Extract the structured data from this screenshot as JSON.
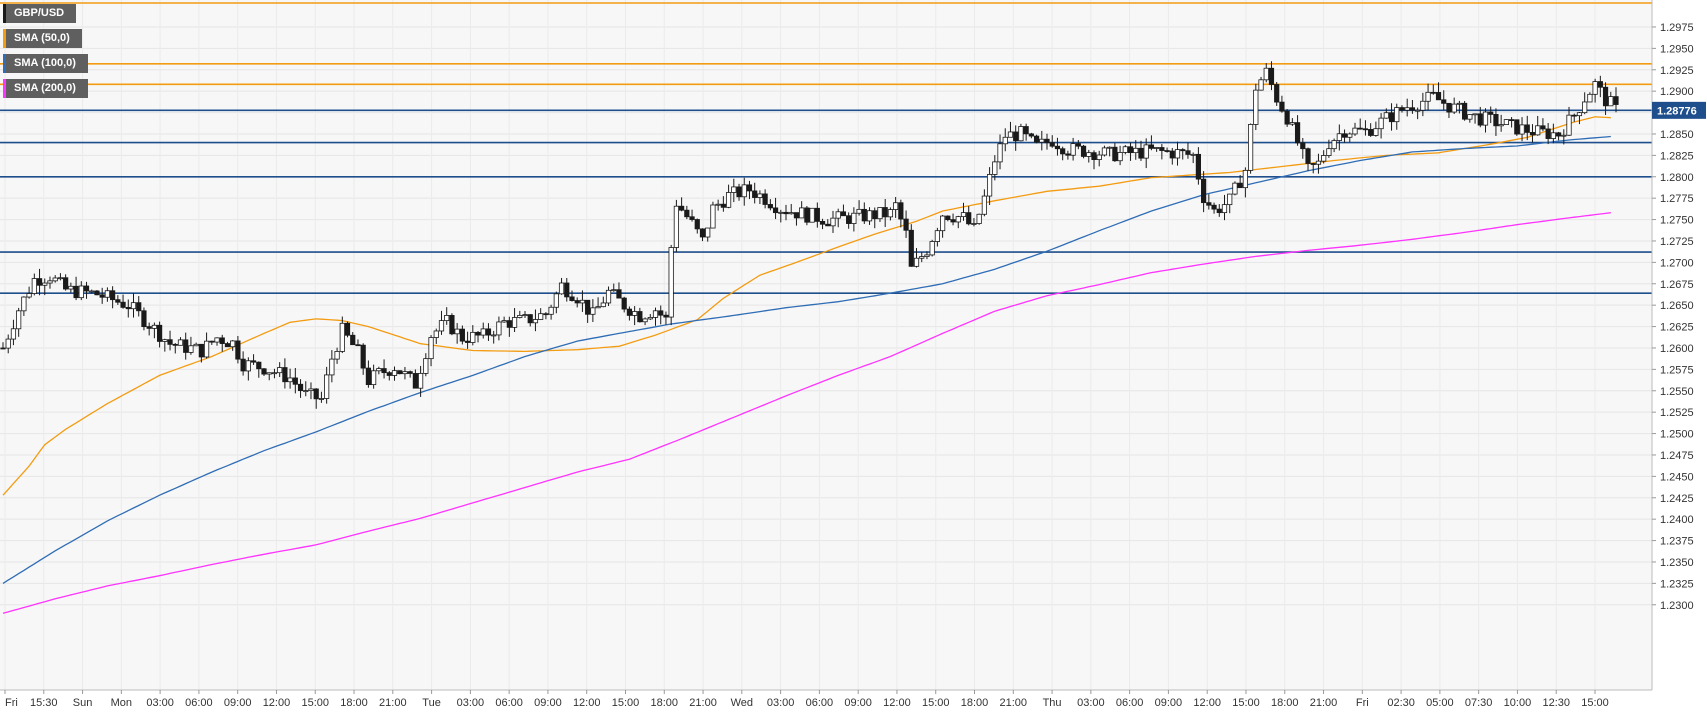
{
  "legend": {
    "items": [
      {
        "label": "GBP/USD",
        "color": "#1a1a1a"
      },
      {
        "label": "SMA (50,0)",
        "color": "#f39c12"
      },
      {
        "label": "SMA (100,0)",
        "color": "#2f6db5"
      },
      {
        "label": "SMA (200,0)",
        "color": "#ff33ff"
      }
    ]
  },
  "chart_data": {
    "type": "candlestick",
    "symbol": "GBP/USD",
    "last_price_label": "1.28776",
    "last_price": 1.28776,
    "ylim": [
      1.228,
      1.3005
    ],
    "y_ticks": [
      "1.2975",
      "1.2950",
      "1.2925",
      "1.2900",
      "1.2875",
      "1.2850",
      "1.2825",
      "1.2800",
      "1.2775",
      "1.2750",
      "1.2725",
      "1.2700",
      "1.2675",
      "1.2650",
      "1.2625",
      "1.2600",
      "1.2575",
      "1.2550",
      "1.2525",
      "1.2500",
      "1.2475",
      "1.2450",
      "1.2425",
      "1.2400",
      "1.2375",
      "1.2350",
      "1.2325",
      "1.2300"
    ],
    "x_ticks": [
      "Fri",
      "15:30",
      "Sun",
      "Mon",
      "03:00",
      "06:00",
      "09:00",
      "12:00",
      "15:00",
      "18:00",
      "21:00",
      "Tue",
      "03:00",
      "06:00",
      "09:00",
      "12:00",
      "15:00",
      "18:00",
      "21:00",
      "Wed",
      "03:00",
      "06:00",
      "09:00",
      "12:00",
      "15:00",
      "18:00",
      "21:00",
      "Thu",
      "03:00",
      "06:00",
      "09:00",
      "12:00",
      "15:00",
      "18:00",
      "21:00",
      "Fri",
      "02:30",
      "05:00",
      "07:30",
      "10:00",
      "12:30",
      "15:00"
    ],
    "horizontal_levels": [
      {
        "value": 1.3003,
        "color": "#f39c12"
      },
      {
        "value": 1.2932,
        "color": "#f39c12"
      },
      {
        "value": 1.2908,
        "color": "#f39c12"
      },
      {
        "value": 1.28776,
        "color": "#1f4e8c"
      },
      {
        "value": 1.284,
        "color": "#1f4e8c"
      },
      {
        "value": 1.28,
        "color": "#1f4e8c"
      },
      {
        "value": 1.2712,
        "color": "#1f4e8c"
      },
      {
        "value": 1.2664,
        "color": "#1f4e8c"
      }
    ],
    "sma": [
      {
        "name": "SMA (50,0)",
        "color": "#f39c12",
        "points": [
          [
            0,
            1.2428
          ],
          [
            5,
            1.2462
          ],
          [
            8,
            1.2487
          ],
          [
            12,
            1.2505
          ],
          [
            20,
            1.2535
          ],
          [
            30,
            1.2568
          ],
          [
            40,
            1.259
          ],
          [
            50,
            1.2617
          ],
          [
            55,
            1.263
          ],
          [
            60,
            1.2634
          ],
          [
            65,
            1.2632
          ],
          [
            70,
            1.2625
          ],
          [
            80,
            1.2605
          ],
          [
            90,
            1.2597
          ],
          [
            100,
            1.2596
          ],
          [
            110,
            1.2598
          ],
          [
            118,
            1.2602
          ],
          [
            125,
            1.2615
          ],
          [
            133,
            1.2633
          ],
          [
            138,
            1.2658
          ],
          [
            145,
            1.2685
          ],
          [
            152,
            1.27
          ],
          [
            160,
            1.2718
          ],
          [
            167,
            1.2733
          ],
          [
            175,
            1.2748
          ],
          [
            180,
            1.276
          ],
          [
            190,
            1.2772
          ],
          [
            200,
            1.2783
          ],
          [
            210,
            1.2789
          ],
          [
            220,
            1.2799
          ],
          [
            235,
            1.2805
          ],
          [
            245,
            1.2812
          ],
          [
            255,
            1.2819
          ],
          [
            265,
            1.2825
          ],
          [
            275,
            1.2828
          ],
          [
            285,
            1.2838
          ],
          [
            292,
            1.2846
          ],
          [
            298,
            1.2858
          ],
          [
            301,
            1.2864
          ],
          [
            305,
            1.287
          ],
          [
            308,
            1.2869
          ]
        ]
      },
      {
        "name": "SMA (100,0)",
        "color": "#2f6db5",
        "points": [
          [
            0,
            1.2325
          ],
          [
            10,
            1.2363
          ],
          [
            20,
            1.2398
          ],
          [
            30,
            1.2428
          ],
          [
            40,
            1.2455
          ],
          [
            50,
            1.248
          ],
          [
            60,
            1.2502
          ],
          [
            70,
            1.2526
          ],
          [
            80,
            1.2548
          ],
          [
            90,
            1.2568
          ],
          [
            100,
            1.259
          ],
          [
            110,
            1.2608
          ],
          [
            118,
            1.2617
          ],
          [
            128,
            1.2628
          ],
          [
            140,
            1.2638
          ],
          [
            150,
            1.2647
          ],
          [
            160,
            1.2654
          ],
          [
            170,
            1.2664
          ],
          [
            180,
            1.2675
          ],
          [
            190,
            1.2692
          ],
          [
            200,
            1.2713
          ],
          [
            210,
            1.2737
          ],
          [
            220,
            1.276
          ],
          [
            230,
            1.2779
          ],
          [
            240,
            1.2793
          ],
          [
            250,
            1.2807
          ],
          [
            260,
            1.2819
          ],
          [
            270,
            1.2829
          ],
          [
            280,
            1.2833
          ],
          [
            290,
            1.2836
          ],
          [
            300,
            1.2843
          ],
          [
            308,
            1.2847
          ]
        ]
      },
      {
        "name": "SMA (200,0)",
        "color": "#ff33ff",
        "points": [
          [
            0,
            1.229
          ],
          [
            10,
            1.2307
          ],
          [
            20,
            1.2322
          ],
          [
            30,
            1.2334
          ],
          [
            40,
            1.2347
          ],
          [
            50,
            1.2359
          ],
          [
            60,
            1.237
          ],
          [
            70,
            1.2386
          ],
          [
            80,
            1.2401
          ],
          [
            90,
            1.2419
          ],
          [
            100,
            1.2437
          ],
          [
            110,
            1.2455
          ],
          [
            120,
            1.247
          ],
          [
            130,
            1.2494
          ],
          [
            140,
            1.2519
          ],
          [
            150,
            1.2544
          ],
          [
            160,
            1.2568
          ],
          [
            170,
            1.259
          ],
          [
            180,
            1.2617
          ],
          [
            190,
            1.2643
          ],
          [
            200,
            1.2661
          ],
          [
            210,
            1.2674
          ],
          [
            220,
            1.2688
          ],
          [
            230,
            1.2698
          ],
          [
            240,
            1.2707
          ],
          [
            250,
            1.2714
          ],
          [
            260,
            1.272
          ],
          [
            270,
            1.2727
          ],
          [
            280,
            1.2735
          ],
          [
            290,
            1.2744
          ],
          [
            300,
            1.2752
          ],
          [
            308,
            1.2758
          ]
        ]
      }
    ],
    "candle_count": 310,
    "price_path": [
      [
        0,
        1.26
      ],
      [
        3,
        1.2645
      ],
      [
        6,
        1.268
      ],
      [
        9,
        1.2684
      ],
      [
        12,
        1.2668
      ],
      [
        18,
        1.2663
      ],
      [
        24,
        1.265
      ],
      [
        28,
        1.2628
      ],
      [
        32,
        1.2605
      ],
      [
        38,
        1.2597
      ],
      [
        41,
        1.2612
      ],
      [
        44,
        1.2606
      ],
      [
        46,
        1.2582
      ],
      [
        50,
        1.2577
      ],
      [
        55,
        1.2565
      ],
      [
        58,
        1.2545
      ],
      [
        61,
        1.254
      ],
      [
        63,
        1.2588
      ],
      [
        65,
        1.262
      ],
      [
        68,
        1.2595
      ],
      [
        70,
        1.2562
      ],
      [
        72,
        1.257
      ],
      [
        75,
        1.2578
      ],
      [
        79,
        1.2558
      ],
      [
        82,
        1.2615
      ],
      [
        85,
        1.263
      ],
      [
        88,
        1.2612
      ],
      [
        92,
        1.2614
      ],
      [
        96,
        1.263
      ],
      [
        100,
        1.2632
      ],
      [
        104,
        1.264
      ],
      [
        107,
        1.2673
      ],
      [
        110,
        1.266
      ],
      [
        113,
        1.2638
      ],
      [
        116,
        1.2665
      ],
      [
        119,
        1.265
      ],
      [
        122,
        1.2638
      ],
      [
        125,
        1.2645
      ],
      [
        127,
        1.2633
      ],
      [
        128,
        1.2718
      ],
      [
        129,
        1.277
      ],
      [
        132,
        1.2745
      ],
      [
        134,
        1.2725
      ],
      [
        136,
        1.2763
      ],
      [
        139,
        1.2778
      ],
      [
        143,
        1.2785
      ],
      [
        146,
        1.2775
      ],
      [
        149,
        1.2763
      ],
      [
        153,
        1.2757
      ],
      [
        158,
        1.275
      ],
      [
        162,
        1.2752
      ],
      [
        166,
        1.2755
      ],
      [
        170,
        1.2757
      ],
      [
        171,
        1.2766
      ],
      [
        173,
        1.2733
      ],
      [
        174,
        1.2692
      ],
      [
        177,
        1.2715
      ],
      [
        180,
        1.2757
      ],
      [
        184,
        1.2752
      ],
      [
        186,
        1.2738
      ],
      [
        188,
        1.2775
      ],
      [
        190,
        1.282
      ],
      [
        192,
        1.2848
      ],
      [
        195,
        1.285
      ],
      [
        198,
        1.2835
      ],
      [
        201,
        1.2843
      ],
      [
        204,
        1.2832
      ],
      [
        208,
        1.283
      ],
      [
        212,
        1.2826
      ],
      [
        216,
        1.2828
      ],
      [
        220,
        1.283
      ],
      [
        225,
        1.2828
      ],
      [
        228,
        1.2825
      ],
      [
        230,
        1.2777
      ],
      [
        232,
        1.276
      ],
      [
        235,
        1.2772
      ],
      [
        238,
        1.2808
      ],
      [
        240,
        1.2905
      ],
      [
        242,
        1.2922
      ],
      [
        244,
        1.2892
      ],
      [
        246,
        1.287
      ],
      [
        248,
        1.284
      ],
      [
        250,
        1.2808
      ],
      [
        252,
        1.2815
      ],
      [
        254,
        1.284
      ],
      [
        257,
        1.2855
      ],
      [
        261,
        1.2853
      ],
      [
        265,
        1.2868
      ],
      [
        269,
        1.2882
      ],
      [
        274,
        1.2893
      ],
      [
        278,
        1.288
      ],
      [
        282,
        1.287
      ],
      [
        286,
        1.2864
      ],
      [
        290,
        1.2857
      ],
      [
        294,
        1.2852
      ],
      [
        298,
        1.285
      ],
      [
        301,
        1.2872
      ],
      [
        303,
        1.2892
      ],
      [
        305,
        1.2908
      ],
      [
        307,
        1.289
      ],
      [
        308,
        1.2885
      ],
      [
        309,
        1.2878
      ]
    ]
  }
}
